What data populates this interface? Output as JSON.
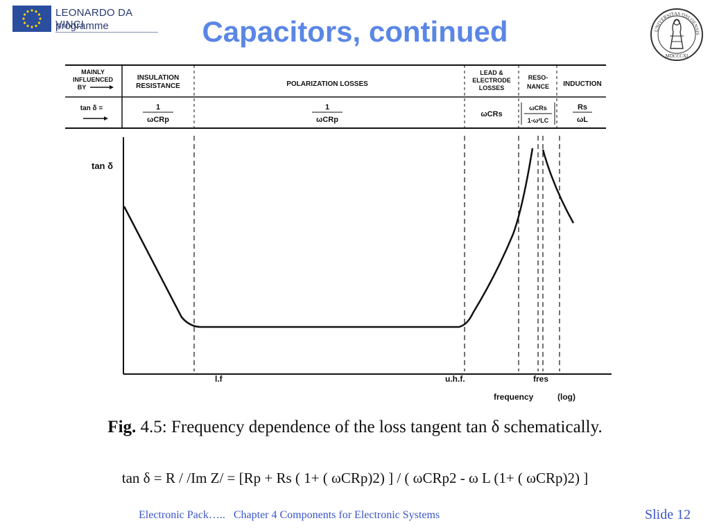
{
  "header": {
    "logo_line1": "LEONARDO DA VINCI",
    "logo_line2": "programme",
    "title": "Capacitors, continued",
    "seal": "UNIVERSITAS OSLOENSIS MDCCCXI"
  },
  "diagram": {
    "row1_label": [
      "MAINLY",
      "INFLUENCED",
      "BY"
    ],
    "row2_label": "tan δ =",
    "columns": [
      {
        "name": [
          "INSULATION",
          "RESISTANCE"
        ],
        "formula_num": "1",
        "formula_den": "ωCRp"
      },
      {
        "name": [
          "POLARIZATION LOSSES"
        ],
        "formula_num": "1",
        "formula_den": "ωCRp"
      },
      {
        "name": [
          "LEAD &",
          "ELECTRODE",
          "LOSSES"
        ],
        "formula": "ωCRs"
      },
      {
        "name": [
          "RESO-",
          "NANCE"
        ],
        "formula_num": "ωCRs",
        "formula_den": "1-ω²LC"
      },
      {
        "name": [
          "INDUCTION"
        ],
        "formula_num": "Rs",
        "formula_den": "ωL"
      }
    ],
    "y_axis_label": "tan δ",
    "x_ticks": [
      "l.f",
      "u.h.f.",
      "fres"
    ],
    "x_axis_label": "frequency",
    "x_axis_scale": "(log)"
  },
  "caption": {
    "fig_label": "Fig.",
    "text": "4.5: Frequency dependence of the loss tangent tan δ schematically."
  },
  "formula": "tan δ = R / /Im Z/ = [Rp + Rs ( 1+ ( ωCRp)2) ] / ( ωCRp2 - ω L (1+ ( ωCRp)2) ]",
  "footer": {
    "text": "Electronic Pack…..   Chapter 4 Components for Electronic Systems",
    "slide": "Slide 12"
  },
  "colors": {
    "title": "#5a86e6",
    "footer": "#3a55c8",
    "eu_blue": "#2a4d9e",
    "eu_star": "#ffd400"
  }
}
